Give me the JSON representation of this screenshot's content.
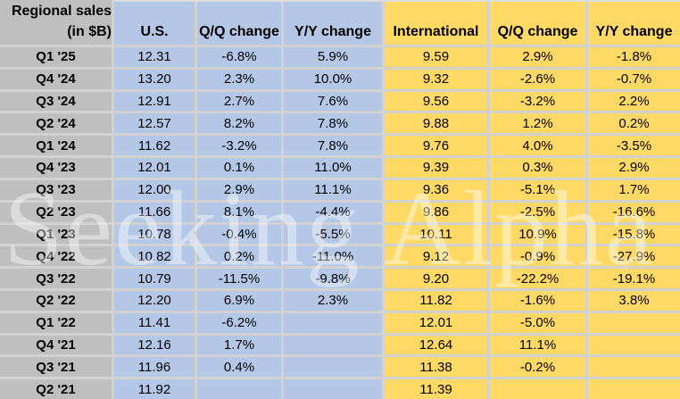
{
  "table": {
    "corner_header": {
      "line1": "Regional sales",
      "line2": "(in $B)"
    },
    "columns": [
      "U.S.",
      "Q/Q change",
      "Y/Y change",
      "International",
      "Q/Q change",
      "Y/Y change"
    ],
    "rows": [
      {
        "label": "Q1 '25",
        "us": "12.31",
        "us_qq": "-6.8%",
        "us_yy": "5.9%",
        "intl": "9.59",
        "intl_qq": "2.9%",
        "intl_yy": "-1.8%"
      },
      {
        "label": "Q4 '24",
        "us": "13.20",
        "us_qq": "2.3%",
        "us_yy": "10.0%",
        "intl": "9.32",
        "intl_qq": "-2.6%",
        "intl_yy": "-0.7%"
      },
      {
        "label": "Q3 '24",
        "us": "12.91",
        "us_qq": "2.7%",
        "us_yy": "7.6%",
        "intl": "9.56",
        "intl_qq": "-3.2%",
        "intl_yy": "2.2%"
      },
      {
        "label": "Q2 '24",
        "us": "12.57",
        "us_qq": "8.2%",
        "us_yy": "7.8%",
        "intl": "9.88",
        "intl_qq": "1.2%",
        "intl_yy": "0.2%"
      },
      {
        "label": "Q1 '24",
        "us": "11.62",
        "us_qq": "-3.2%",
        "us_yy": "7.8%",
        "intl": "9.76",
        "intl_qq": "4.0%",
        "intl_yy": "-3.5%"
      },
      {
        "label": "Q4 '23",
        "us": "12.01",
        "us_qq": "0.1%",
        "us_yy": "11.0%",
        "intl": "9.39",
        "intl_qq": "0.3%",
        "intl_yy": "2.9%"
      },
      {
        "label": "Q3 '23",
        "us": "12.00",
        "us_qq": "2.9%",
        "us_yy": "11.1%",
        "intl": "9.36",
        "intl_qq": "-5.1%",
        "intl_yy": "1.7%"
      },
      {
        "label": "Q2 '23",
        "us": "11.66",
        "us_qq": "8.1%",
        "us_yy": "-4.4%",
        "intl": "9.86",
        "intl_qq": "-2.5%",
        "intl_yy": "-16.6%"
      },
      {
        "label": "Q1 '23",
        "us": "10.78",
        "us_qq": "-0.4%",
        "us_yy": "-5.5%",
        "intl": "10.11",
        "intl_qq": "10.9%",
        "intl_yy": "-15.8%"
      },
      {
        "label": "Q4 '22",
        "us": "10.82",
        "us_qq": "0.2%",
        "us_yy": "-11.0%",
        "intl": "9.12",
        "intl_qq": "-0.9%",
        "intl_yy": "-27.9%"
      },
      {
        "label": "Q3 '22",
        "us": "10.79",
        "us_qq": "-11.5%",
        "us_yy": "-9.8%",
        "intl": "9.20",
        "intl_qq": "-22.2%",
        "intl_yy": "-19.1%"
      },
      {
        "label": "Q2 '22",
        "us": "12.20",
        "us_qq": "6.9%",
        "us_yy": "2.3%",
        "intl": "11.82",
        "intl_qq": "-1.6%",
        "intl_yy": "3.8%"
      },
      {
        "label": "Q1 '22",
        "us": "11.41",
        "us_qq": "-6.2%",
        "us_yy": "",
        "intl": "12.01",
        "intl_qq": "-5.0%",
        "intl_yy": ""
      },
      {
        "label": "Q4 '21",
        "us": "12.16",
        "us_qq": "1.7%",
        "us_yy": "",
        "intl": "12.64",
        "intl_qq": "11.1%",
        "intl_yy": ""
      },
      {
        "label": "Q3 '21",
        "us": "11.96",
        "us_qq": "0.4%",
        "us_yy": "",
        "intl": "11.38",
        "intl_qq": "-0.2%",
        "intl_yy": ""
      },
      {
        "label": "Q2 '21",
        "us": "11.92",
        "us_qq": "",
        "us_yy": "",
        "intl": "11.39",
        "intl_qq": "",
        "intl_yy": ""
      }
    ]
  },
  "watermark": {
    "text": "Seeking Alpha"
  },
  "colors": {
    "label_column": "#BFBFBF",
    "us_columns": "#B4C7E7",
    "international_columns": "#FFD966",
    "gridline": "#D2D2D2",
    "text": "#000000",
    "watermark": "rgba(255,255,255,0.42)"
  },
  "chart_data": {
    "type": "table",
    "title": "Regional sales (in $B)",
    "categories": [
      "Q1 '25",
      "Q4 '24",
      "Q3 '24",
      "Q2 '24",
      "Q1 '24",
      "Q4 '23",
      "Q3 '23",
      "Q2 '23",
      "Q1 '23",
      "Q4 '22",
      "Q3 '22",
      "Q2 '22",
      "Q1 '22",
      "Q4 '21",
      "Q3 '21",
      "Q2 '21"
    ],
    "series": [
      {
        "name": "U.S. sales ($B)",
        "values": [
          12.31,
          13.2,
          12.91,
          12.57,
          11.62,
          12.01,
          12.0,
          11.66,
          10.78,
          10.82,
          10.79,
          12.2,
          11.41,
          12.16,
          11.96,
          11.92
        ]
      },
      {
        "name": "U.S. Q/Q change (%)",
        "values": [
          -6.8,
          2.3,
          2.7,
          8.2,
          -3.2,
          0.1,
          2.9,
          8.1,
          -0.4,
          0.2,
          -11.5,
          6.9,
          -6.2,
          1.7,
          0.4,
          null
        ]
      },
      {
        "name": "U.S. Y/Y change (%)",
        "values": [
          5.9,
          10.0,
          7.6,
          7.8,
          7.8,
          11.0,
          11.1,
          -4.4,
          -5.5,
          -11.0,
          -9.8,
          2.3,
          null,
          null,
          null,
          null
        ]
      },
      {
        "name": "International sales ($B)",
        "values": [
          9.59,
          9.32,
          9.56,
          9.88,
          9.76,
          9.39,
          9.36,
          9.86,
          10.11,
          9.12,
          9.2,
          11.82,
          12.01,
          12.64,
          11.38,
          11.39
        ]
      },
      {
        "name": "International Q/Q change (%)",
        "values": [
          2.9,
          -2.6,
          -3.2,
          1.2,
          4.0,
          0.3,
          -5.1,
          -2.5,
          10.9,
          -0.9,
          -22.2,
          -1.6,
          -5.0,
          11.1,
          -0.2,
          null
        ]
      },
      {
        "name": "International Y/Y change (%)",
        "values": [
          -1.8,
          -0.7,
          2.2,
          0.2,
          -3.5,
          2.9,
          1.7,
          -16.6,
          -15.8,
          -27.9,
          -19.1,
          3.8,
          null,
          null,
          null,
          null
        ]
      }
    ]
  }
}
